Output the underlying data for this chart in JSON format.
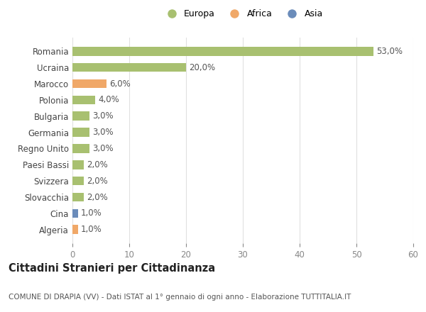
{
  "categories": [
    "Algeria",
    "Cina",
    "Slovacchia",
    "Svizzera",
    "Paesi Bassi",
    "Regno Unito",
    "Germania",
    "Bulgaria",
    "Polonia",
    "Marocco",
    "Ucraina",
    "Romania"
  ],
  "values": [
    1.0,
    1.0,
    2.0,
    2.0,
    2.0,
    3.0,
    3.0,
    3.0,
    4.0,
    6.0,
    20.0,
    53.0
  ],
  "bar_colors": [
    "#f0a868",
    "#6b8cba",
    "#a8c070",
    "#a8c070",
    "#a8c070",
    "#a8c070",
    "#a8c070",
    "#a8c070",
    "#a8c070",
    "#f0a868",
    "#a8c070",
    "#a8c070"
  ],
  "labels": [
    "1,0%",
    "1,0%",
    "2,0%",
    "2,0%",
    "2,0%",
    "3,0%",
    "3,0%",
    "3,0%",
    "4,0%",
    "6,0%",
    "20,0%",
    "53,0%"
  ],
  "xlim": [
    0,
    60
  ],
  "xticks": [
    0,
    10,
    20,
    30,
    40,
    50,
    60
  ],
  "legend_items": [
    {
      "label": "Europa",
      "color": "#a8c070"
    },
    {
      "label": "Africa",
      "color": "#f0a868"
    },
    {
      "label": "Asia",
      "color": "#6b8cba"
    }
  ],
  "title1": "Cittadini Stranieri per Cittadinanza",
  "title2": "COMUNE DI DRAPIA (VV) - Dati ISTAT al 1° gennaio di ogni anno - Elaborazione TUTTITALIA.IT",
  "background_color": "#ffffff",
  "bar_height": 0.55,
  "label_fontsize": 8.5,
  "tick_fontsize": 8.5,
  "category_fontsize": 8.5,
  "grid_color": "#e0e0e0"
}
